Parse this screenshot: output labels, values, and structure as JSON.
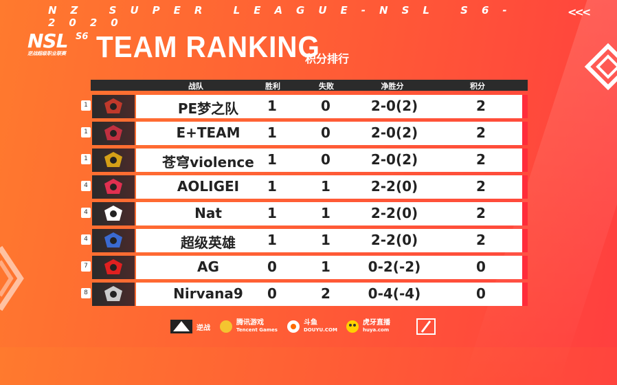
{
  "banner": "NZ SUPER LEAGUE-NSL S6-2020",
  "logo": {
    "main": "NSL",
    "season": "S6",
    "sub": "逆战超级职业联赛"
  },
  "title": "TEAM RANKING",
  "title_cn": "积分排行",
  "headers": {
    "team": "战队",
    "wins": "胜利",
    "losses": "失败",
    "net": "净胜分",
    "points": "积分"
  },
  "rows": [
    {
      "rank": "1",
      "team": "PE梦之队",
      "wins": "1",
      "losses": "0",
      "net": "2-0(2)",
      "points": "2",
      "logo_color": "#c0392b"
    },
    {
      "rank": "1",
      "team": "E+TEAM",
      "wins": "1",
      "losses": "0",
      "net": "2-0(2)",
      "points": "2",
      "logo_color": "#c03040"
    },
    {
      "rank": "1",
      "team": "苍穹violence",
      "wins": "1",
      "losses": "0",
      "net": "2-0(2)",
      "points": "2",
      "logo_color": "#d4a017"
    },
    {
      "rank": "4",
      "team": "AOLIGEI",
      "wins": "1",
      "losses": "1",
      "net": "2-2(0)",
      "points": "2",
      "logo_color": "#e03050"
    },
    {
      "rank": "4",
      "team": "Nat",
      "wins": "1",
      "losses": "1",
      "net": "2-2(0)",
      "points": "2",
      "logo_color": "#ffffff"
    },
    {
      "rank": "4",
      "team": "超级英雄",
      "wins": "1",
      "losses": "1",
      "net": "2-2(0)",
      "points": "2",
      "logo_color": "#3a6ad0"
    },
    {
      "rank": "7",
      "team": "AG",
      "wins": "0",
      "losses": "1",
      "net": "0-2(-2)",
      "points": "0",
      "logo_color": "#e02020"
    },
    {
      "rank": "8",
      "team": "Nirvana9",
      "wins": "0",
      "losses": "2",
      "net": "0-4(-4)",
      "points": "0",
      "logo_color": "#cccccc"
    }
  ],
  "sponsors": {
    "s1": "逆战",
    "s2": "腾讯游戏",
    "s2_sub": "Tencent Games",
    "s3": "斗鱼",
    "s3_sub": "DOUYU.COM",
    "s4": "虎牙直播",
    "s4_sub": "huya.com"
  }
}
